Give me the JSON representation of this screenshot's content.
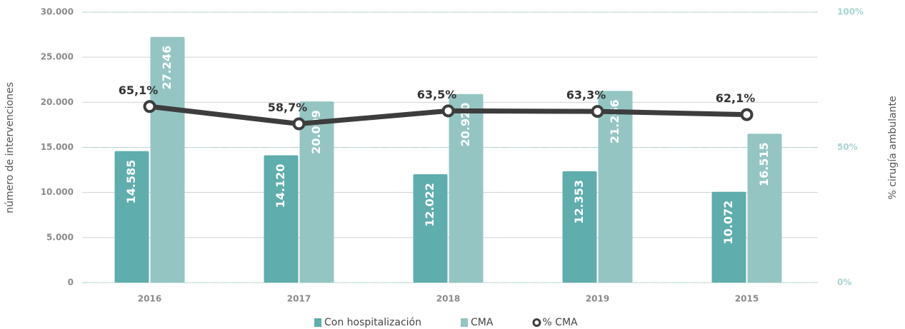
{
  "chart_data": {
    "type": "bar",
    "y_axis_label": "número de intervenciones",
    "y2_axis_label": "% cirugía ambulante",
    "categories": [
      "2016",
      "2017",
      "2018",
      "2019",
      "2015"
    ],
    "series": [
      {
        "name": "Con hospitalización",
        "color": "#5fadac",
        "values": [
          14585,
          14120,
          12022,
          12353,
          10072
        ],
        "value_labels": [
          "14.585",
          "14.120",
          "12.022",
          "12.353",
          "10.072"
        ]
      },
      {
        "name": "CMA",
        "color": "#94c5c3",
        "values": [
          27246,
          20099,
          20920,
          21266,
          16515
        ],
        "value_labels": [
          "27.246",
          "20.099",
          "20.920",
          "21.266",
          "16.515"
        ]
      },
      {
        "name": "% CMA",
        "type": "line",
        "axis": "y2",
        "color": "#3d3d3d",
        "values": [
          65.1,
          58.7,
          63.5,
          63.3,
          62.1
        ],
        "value_labels": [
          "65,1%",
          "58,7%",
          "63,5%",
          "63,3%",
          "62,1%"
        ]
      }
    ],
    "ylim": [
      0,
      30000
    ],
    "yticks": [
      0,
      {
        "value": 5000,
        "label": "5.000"
      },
      {
        "value": 10000,
        "label": "10.000"
      },
      {
        "value": 15000,
        "label": "15.000"
      },
      {
        "value": 20000,
        "label": "20.000"
      },
      {
        "value": 25000,
        "label": "25.000"
      },
      {
        "value": 30000,
        "label": "30.000"
      }
    ],
    "y2lim": [
      0,
      100
    ],
    "y2ticks": [
      {
        "value": 0,
        "label": "0%"
      },
      {
        "value": 50,
        "label": "50%"
      },
      {
        "value": 100,
        "label": "100%"
      }
    ],
    "grid": true,
    "legend": "bottom"
  }
}
